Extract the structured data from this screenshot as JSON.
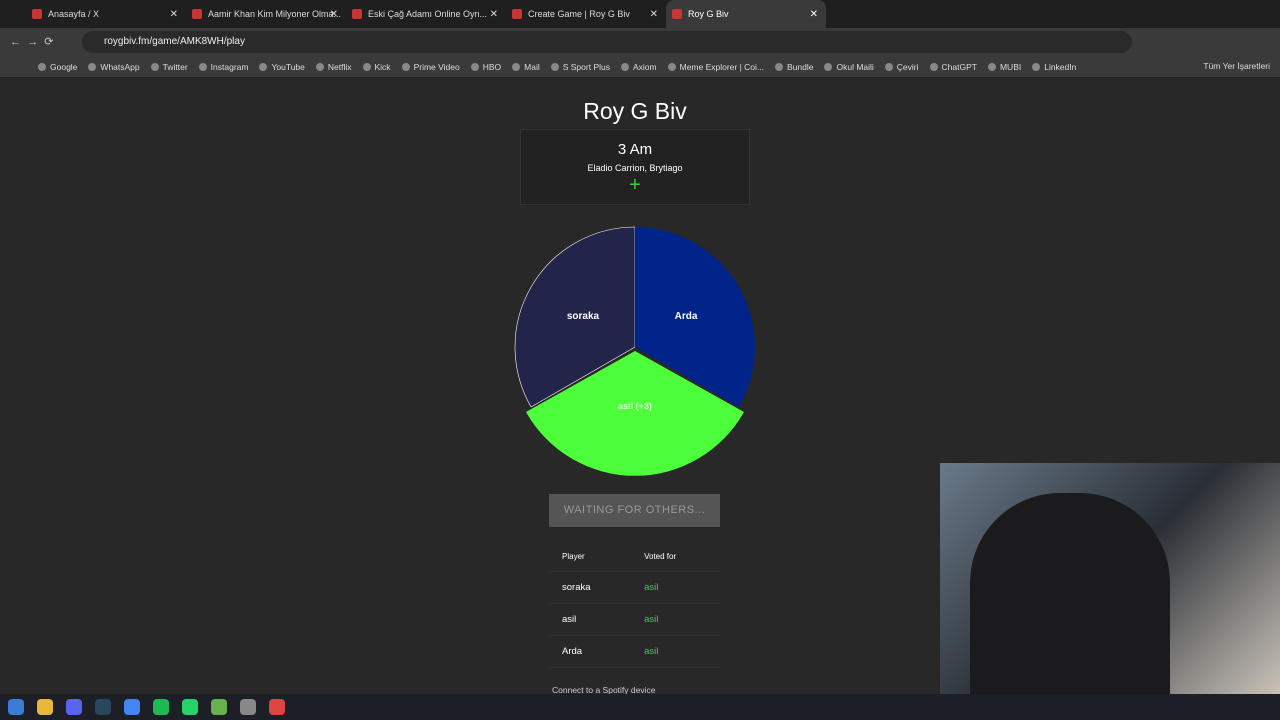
{
  "browser": {
    "tabs": [
      "Anasayfa / X",
      "Aamir Khan Kim Milyoner Olma...",
      "Eski Çağ Adamı Online Oyn...",
      "Create Game | Roy G Biv",
      "Roy G Biv"
    ],
    "url": "roygbiv.fm/game/AMK8WH/play",
    "bookmarks": [
      "Google",
      "WhatsApp",
      "Twitter",
      "Instagram",
      "YouTube",
      "Netflix",
      "Kick",
      "Prime Video",
      "HBO",
      "Mail",
      "S Sport Plus",
      "Axiom",
      "Meme Explorer | Coi...",
      "Bundle",
      "Okul Maili",
      "Çeviri",
      "ChatGPT",
      "MUBI",
      "LinkedIn"
    ],
    "all_bookmarks": "Tüm Yer İşaretleri"
  },
  "page": {
    "title": "Roy G Biv",
    "song": {
      "title": "3 Am",
      "artist": "Eladio Carrion, Brytiago"
    },
    "wheel": {
      "left": "soraka",
      "right": "Arda",
      "bottom": "asil (+3)"
    },
    "button": "WAITING FOR OTHERS...",
    "table": {
      "headers": [
        "Player",
        "Voted for"
      ],
      "rows": [
        [
          "soraka",
          "asil"
        ],
        [
          "asil",
          "asil"
        ],
        [
          "Arda",
          "asil"
        ]
      ]
    },
    "footer": "Connect to a Spotify device"
  }
}
